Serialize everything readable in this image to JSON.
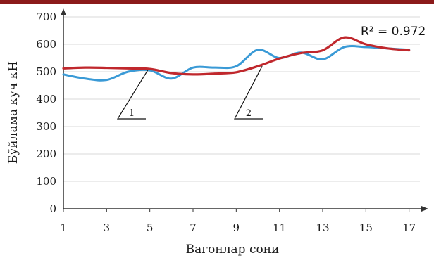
{
  "chart_data": {
    "type": "line",
    "title": "",
    "xlabel": "Вагонлар сони",
    "ylabel": "Бўйлама куч кН",
    "annotation": "R² = 0.972",
    "grid": true,
    "xlim": [
      1,
      17.5
    ],
    "ylim": [
      0,
      700
    ],
    "x_ticks": [
      1,
      3,
      5,
      7,
      9,
      11,
      13,
      15,
      17
    ],
    "y_ticks": [
      0,
      100,
      200,
      300,
      400,
      500,
      600,
      700
    ],
    "callouts": [
      "1",
      "2"
    ],
    "series": [
      {
        "color": "#3a9ad6",
        "x": [
          1,
          2,
          3,
          4,
          5,
          6,
          7,
          8,
          9,
          10,
          11,
          12,
          13,
          14,
          15,
          16,
          17
        ],
        "values": [
          490,
          475,
          470,
          500,
          505,
          475,
          515,
          515,
          520,
          580,
          550,
          570,
          545,
          590,
          590,
          585,
          580
        ]
      },
      {
        "color": "#c0282d",
        "x": [
          1,
          2,
          3,
          4,
          5,
          6,
          7,
          8,
          9,
          10,
          11,
          12,
          13,
          14,
          15,
          16,
          17
        ],
        "values": [
          512,
          515,
          514,
          512,
          510,
          495,
          490,
          493,
          498,
          520,
          548,
          568,
          578,
          625,
          600,
          585,
          578
        ]
      }
    ],
    "colors": {
      "header_band": "#8b1a1a",
      "grid": "#d9d9d9",
      "axis": "#333333"
    }
  }
}
